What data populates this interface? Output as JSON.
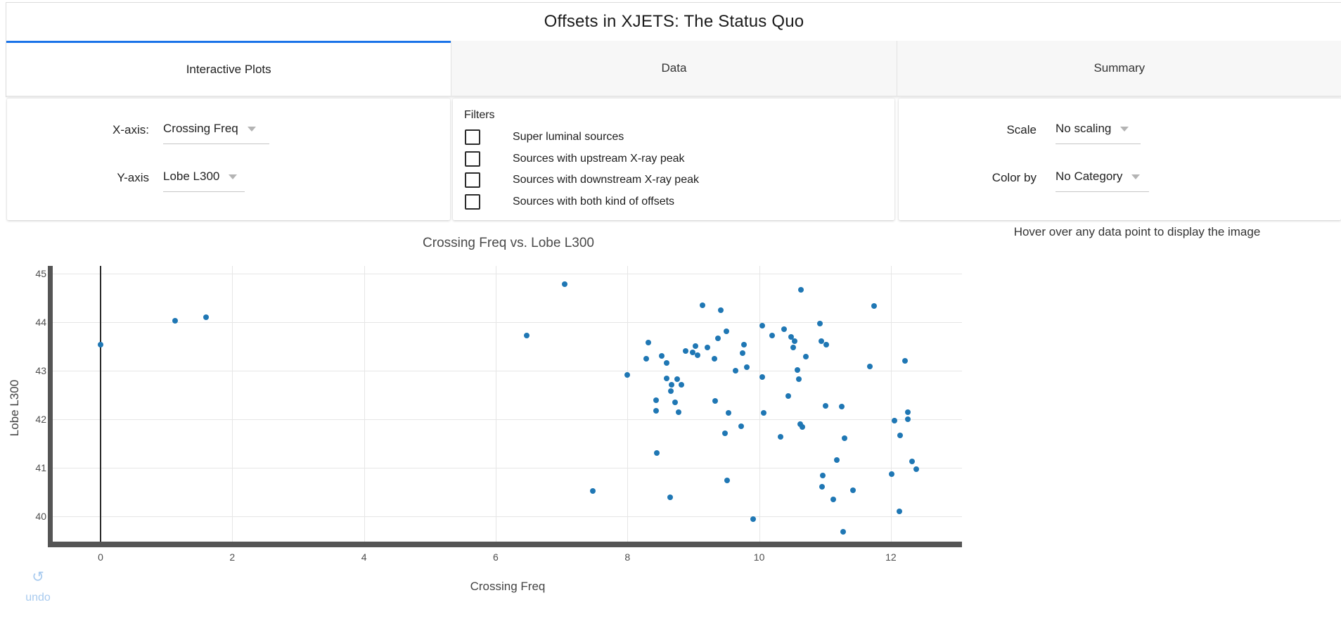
{
  "theme": {
    "accent_blue": "#1a73e8",
    "undo_blue": "#a9cbef"
  },
  "header": {
    "title": "Offsets in XJETS: The Status Quo"
  },
  "tabs": [
    {
      "label": "Interactive Plots",
      "active": true
    },
    {
      "label": "Data",
      "active": false
    },
    {
      "label": "Summary",
      "active": false
    }
  ],
  "controls": {
    "x_axis": {
      "label": "X-axis:",
      "value": "Crossing Freq"
    },
    "y_axis": {
      "label": "Y-axis",
      "value": "Lobe L300"
    },
    "filters": {
      "title": "Filters",
      "options": [
        {
          "label": "Super luminal sources",
          "checked": false
        },
        {
          "label": "Sources with upstream X-ray peak",
          "checked": false
        },
        {
          "label": "Sources with downstream X-ray peak",
          "checked": false
        },
        {
          "label": "Sources with both kind of offsets",
          "checked": false
        }
      ]
    },
    "scale": {
      "label": "Scale",
      "value": "No scaling"
    },
    "color_by": {
      "label": "Color by",
      "value": "No Category"
    }
  },
  "plot": {
    "hover_hint": "Hover over any data point to display the image"
  },
  "undo": {
    "icon": "↺",
    "label": "undo"
  },
  "chart_data": {
    "type": "scatter",
    "title": "Crossing Freq vs. Lobe L300",
    "xlabel": "Crossing Freq",
    "ylabel": "Lobe L300",
    "x_ticks": [
      0,
      2,
      4,
      6,
      8,
      10,
      12
    ],
    "y_ticks": [
      45,
      44,
      43,
      42,
      41,
      40
    ],
    "xlim": [
      -0.73,
      13.08
    ],
    "ylim": [
      39.47,
      45.16
    ],
    "grid": true,
    "vline_x": 0,
    "marker_color": "#1f77b4",
    "points": [
      [
        0.0,
        43.53
      ],
      [
        1.13,
        44.03
      ],
      [
        1.6,
        44.1
      ],
      [
        6.47,
        43.72
      ],
      [
        7.05,
        44.78
      ],
      [
        9.14,
        44.34
      ],
      [
        9.42,
        44.24
      ],
      [
        10.05,
        43.93
      ],
      [
        10.2,
        43.72
      ],
      [
        9.5,
        43.81
      ],
      [
        9.37,
        43.67
      ],
      [
        8.32,
        43.58
      ],
      [
        8.88,
        43.41
      ],
      [
        9.03,
        43.5
      ],
      [
        8.99,
        43.37
      ],
      [
        9.21,
        43.47
      ],
      [
        9.07,
        43.31
      ],
      [
        8.28,
        43.25
      ],
      [
        8.52,
        43.3
      ],
      [
        8.6,
        43.15
      ],
      [
        9.32,
        43.24
      ],
      [
        9.64,
        43.0
      ],
      [
        9.81,
        43.07
      ],
      [
        9.77,
        43.53
      ],
      [
        9.75,
        43.36
      ],
      [
        10.05,
        42.86
      ],
      [
        8.0,
        42.91
      ],
      [
        8.59,
        42.84
      ],
      [
        8.75,
        42.82
      ],
      [
        8.67,
        42.7
      ],
      [
        8.82,
        42.71
      ],
      [
        8.66,
        42.58
      ],
      [
        8.44,
        42.39
      ],
      [
        8.72,
        42.35
      ],
      [
        9.33,
        42.38
      ],
      [
        8.44,
        42.17
      ],
      [
        8.78,
        42.14
      ],
      [
        9.53,
        42.13
      ],
      [
        10.07,
        42.13
      ],
      [
        9.73,
        41.85
      ],
      [
        9.48,
        41.71
      ],
      [
        8.45,
        41.3
      ],
      [
        9.51,
        40.74
      ],
      [
        7.47,
        40.51
      ],
      [
        8.65,
        40.39
      ],
      [
        9.91,
        39.94
      ],
      [
        10.63,
        44.67
      ],
      [
        11.74,
        44.33
      ],
      [
        10.92,
        43.97
      ],
      [
        10.38,
        43.86
      ],
      [
        10.49,
        43.7
      ],
      [
        10.54,
        43.6
      ],
      [
        10.52,
        43.48
      ],
      [
        10.94,
        43.6
      ],
      [
        11.02,
        43.53
      ],
      [
        10.71,
        43.29
      ],
      [
        11.68,
        43.08
      ],
      [
        12.21,
        43.2
      ],
      [
        10.58,
        43.01
      ],
      [
        10.6,
        42.82
      ],
      [
        10.44,
        42.47
      ],
      [
        11.01,
        42.27
      ],
      [
        11.25,
        42.25
      ],
      [
        12.26,
        42.14
      ],
      [
        12.05,
        41.97
      ],
      [
        12.26,
        41.99
      ],
      [
        10.62,
        41.89
      ],
      [
        10.66,
        41.83
      ],
      [
        10.32,
        41.63
      ],
      [
        12.14,
        41.66
      ],
      [
        11.3,
        41.6
      ],
      [
        11.18,
        41.15
      ],
      [
        12.32,
        41.12
      ],
      [
        12.39,
        40.97
      ],
      [
        12.01,
        40.86
      ],
      [
        10.97,
        40.84
      ],
      [
        10.95,
        40.6
      ],
      [
        11.42,
        40.53
      ],
      [
        11.13,
        40.34
      ],
      [
        12.13,
        40.1
      ],
      [
        11.28,
        39.68
      ]
    ]
  }
}
